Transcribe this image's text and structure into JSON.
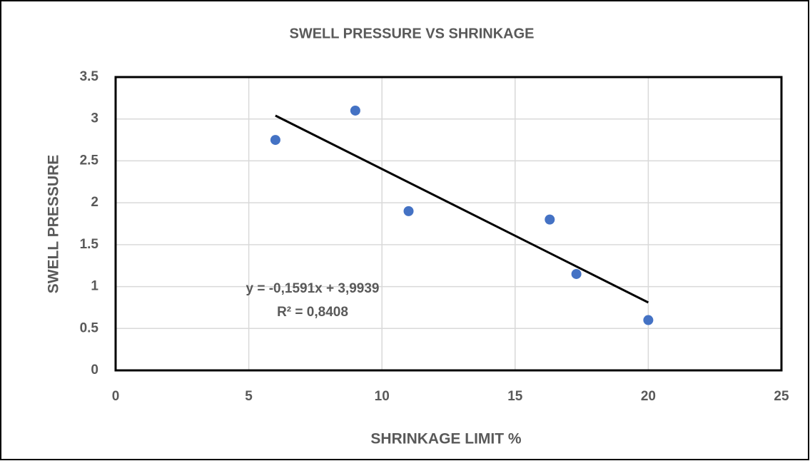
{
  "chart_data": {
    "type": "scatter",
    "title": "SWELL PRESSURE VS SHRINKAGE",
    "x_label": "SHRINKAGE LIMIT  %",
    "y_label": "SWELL PRESSURE",
    "series": [
      {
        "name": "Swell pressure",
        "color": "#4472c4",
        "x": [
          6,
          9,
          11,
          16.3,
          17.3,
          20
        ],
        "values": [
          2.75,
          3.1,
          1.9,
          1.8,
          1.15,
          0.6
        ]
      }
    ],
    "trendline": {
      "color": "#000000",
      "x": [
        6,
        20
      ],
      "values": [
        3.04,
        0.81
      ]
    },
    "annotations": [
      "y = -0,1591x + 3,9939",
      "R² = 0,8408"
    ],
    "xlim": [
      0,
      25
    ],
    "xticks": [
      0,
      5,
      10,
      15,
      20,
      25
    ],
    "ylim": [
      0,
      3.5
    ],
    "yticks": [
      0,
      0.5,
      1,
      1.5,
      2,
      2.5,
      3,
      3.5
    ],
    "grid": true
  }
}
